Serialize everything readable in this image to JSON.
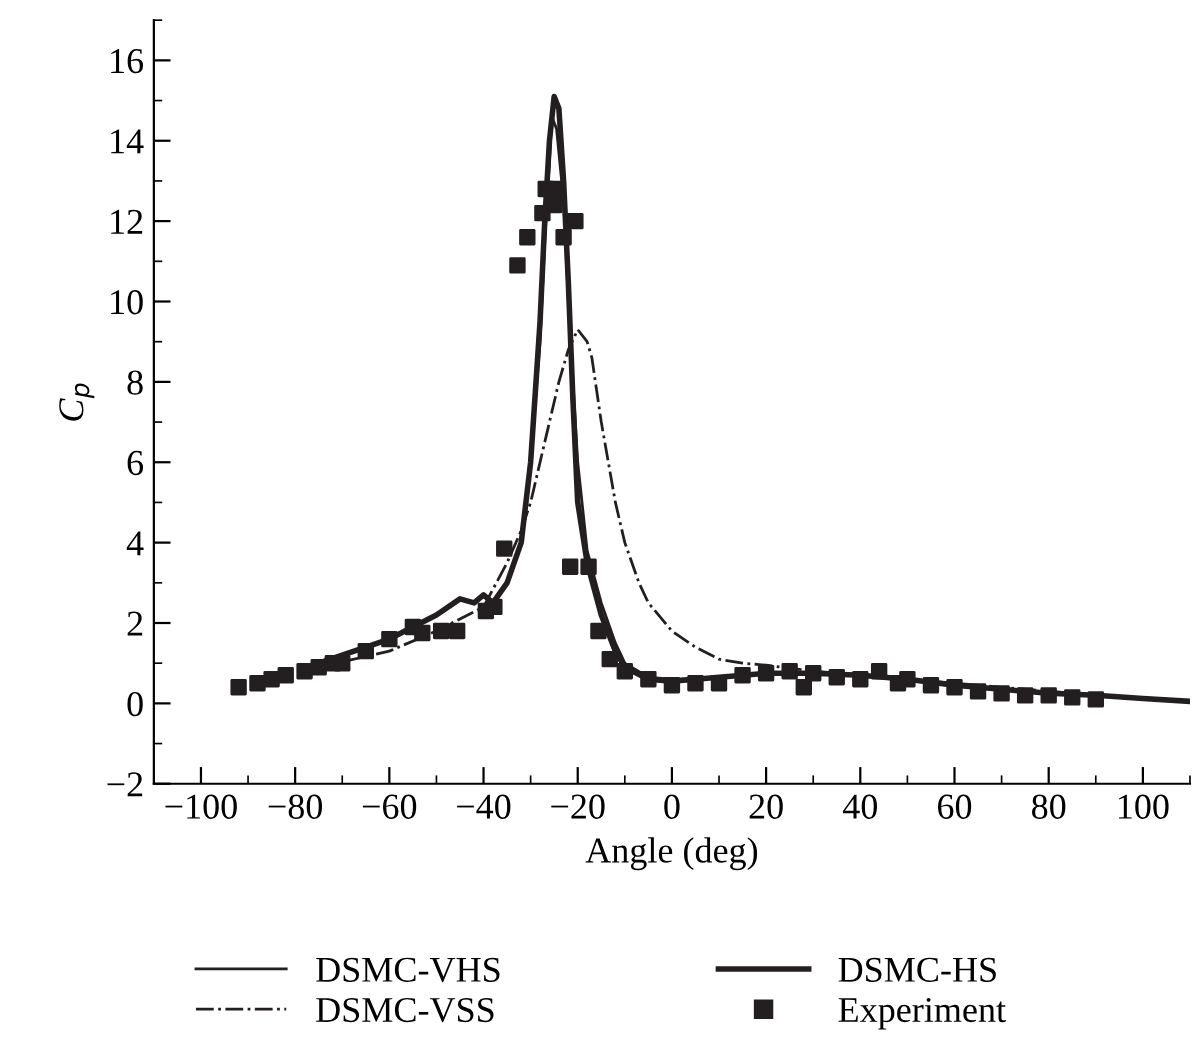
{
  "chart_data": {
    "type": "line",
    "xlabel": "Angle (deg)",
    "ylabel": "C$_{p}$",
    "xlim": [
      -110,
      110
    ],
    "ylim": [
      -2,
      17
    ],
    "xticks": [
      -100,
      -80,
      -60,
      -40,
      -20,
      0,
      20,
      40,
      60,
      80,
      100
    ],
    "yticks": [
      -2,
      0,
      2,
      4,
      6,
      8,
      10,
      12,
      14,
      16
    ],
    "grid": false,
    "legend": "bottom",
    "line_style": "solid",
    "series": [
      {
        "name": "DSMC-VHS",
        "color": "#231f20",
        "marker": "none",
        "x": [
          -75,
          -60,
          -50,
          -45,
          -42,
          -40,
          -38,
          -35,
          -32,
          -30,
          -28,
          -27,
          -26,
          -25.5,
          -24.5,
          -23,
          -22,
          -20,
          -18,
          -15,
          -12,
          -10,
          -5,
          0,
          5,
          10,
          20,
          30,
          40,
          50,
          60,
          70,
          80,
          90,
          100,
          110
        ],
        "values": [
          1.0,
          1.6,
          2.2,
          2.6,
          2.5,
          2.7,
          2.5,
          3.0,
          4.0,
          6.0,
          9.0,
          11.5,
          13.5,
          14.6,
          14.3,
          12.5,
          10.0,
          6.0,
          3.8,
          2.5,
          1.5,
          1.0,
          0.65,
          0.6,
          0.62,
          0.65,
          0.75,
          0.75,
          0.7,
          0.6,
          0.45,
          0.35,
          0.25,
          0.2,
          0.12,
          0.05
        ]
      },
      {
        "name": "DSMC-VSS",
        "color": "#231f20",
        "line_style": "dashdot",
        "marker": "none",
        "x": [
          -75,
          -60,
          -50,
          -45,
          -40,
          -35,
          -32,
          -30,
          -27,
          -24,
          -22,
          -20,
          -18,
          -17,
          -15,
          -12,
          -10,
          -7,
          -5,
          0,
          5,
          10,
          15,
          20,
          30,
          50,
          70,
          90,
          110
        ],
        "values": [
          0.9,
          1.3,
          1.8,
          2.1,
          2.4,
          3.5,
          4.3,
          5.0,
          6.5,
          8.0,
          8.8,
          9.3,
          9.0,
          8.6,
          7.0,
          5.0,
          4.0,
          3.0,
          2.5,
          1.8,
          1.4,
          1.1,
          1.0,
          0.95,
          0.8,
          0.6,
          0.4,
          0.2,
          0.05
        ]
      },
      {
        "name": "DSMC-HS",
        "color": "#231f20",
        "marker": "none",
        "x": [
          -75,
          -60,
          -50,
          -45,
          -42,
          -40,
          -38,
          -35,
          -32,
          -30,
          -28,
          -27,
          -26,
          -25,
          -24,
          -23,
          -22,
          -21,
          -20,
          -18,
          -15,
          -12,
          -10,
          -5,
          0,
          5,
          10,
          20,
          30,
          40,
          50,
          60,
          70,
          80,
          90,
          100,
          110
        ],
        "values": [
          1.0,
          1.6,
          2.2,
          2.6,
          2.5,
          2.7,
          2.5,
          3.0,
          4.0,
          6.0,
          9.5,
          12.0,
          14.0,
          15.1,
          14.8,
          13.0,
          10.5,
          7.5,
          5.0,
          3.5,
          2.2,
          1.3,
          0.9,
          0.6,
          0.55,
          0.6,
          0.65,
          0.75,
          0.75,
          0.7,
          0.6,
          0.45,
          0.35,
          0.25,
          0.2,
          0.12,
          0.05
        ]
      },
      {
        "name": "Experiment",
        "color": "#231f20",
        "type": "scatter",
        "marker": "square",
        "x": [
          -92,
          -88,
          -85,
          -82,
          -78,
          -75,
          -72,
          -70,
          -65,
          -60,
          -55,
          -53,
          -49,
          -45.6,
          -39.5,
          -37.7,
          -35.6,
          -32.8,
          -30.7,
          -27.5,
          -26.8,
          -25,
          -24.4,
          -23,
          -20.5,
          -21.6,
          -17.7,
          -15.6,
          -13.2,
          -10,
          -5,
          0,
          5,
          10,
          15,
          20,
          25,
          28,
          30,
          35,
          40,
          44,
          48,
          50,
          55,
          60,
          65,
          70,
          75,
          80,
          85,
          90
        ],
        "values": [
          0.4,
          0.5,
          0.6,
          0.7,
          0.8,
          0.9,
          1.0,
          1.0,
          1.3,
          1.6,
          1.9,
          1.75,
          1.8,
          1.8,
          2.3,
          2.4,
          3.85,
          10.9,
          11.6,
          12.2,
          12.8,
          12.4,
          12.8,
          11.6,
          12.0,
          3.4,
          3.4,
          1.8,
          1.1,
          0.8,
          0.6,
          0.45,
          0.5,
          0.5,
          0.7,
          0.75,
          0.8,
          0.4,
          0.75,
          0.65,
          0.6,
          0.8,
          0.5,
          0.6,
          0.45,
          0.4,
          0.3,
          0.25,
          0.2,
          0.2,
          0.15,
          0.1
        ]
      }
    ]
  }
}
